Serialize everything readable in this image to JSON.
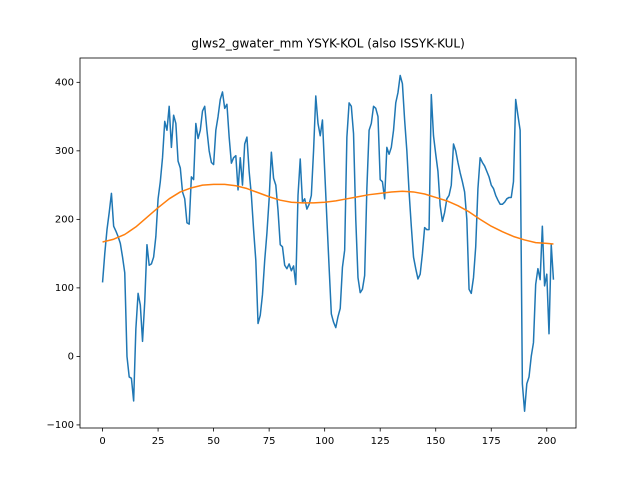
{
  "chart_data": {
    "type": "line",
    "title": "glws2_gwater_mm YSYK-KOL (also ISSYK-KUL)",
    "xlim": [
      -10.15,
      213.15
    ],
    "ylim": [
      -104.5,
      435.5
    ],
    "xticks": [
      0,
      25,
      50,
      75,
      100,
      125,
      150,
      175,
      200
    ],
    "yticks": [
      {
        "value": -100,
        "label": "−100"
      },
      0,
      100,
      200,
      300,
      400
    ],
    "series": [
      {
        "color": "#1f77b4",
        "x": [
          0,
          1,
          2,
          3,
          4,
          5,
          6,
          7,
          8,
          9,
          10,
          11,
          12,
          13,
          14,
          15,
          16,
          17,
          18,
          19,
          20,
          21,
          22,
          23,
          24,
          25,
          26,
          27,
          28,
          29,
          30,
          31,
          32,
          33,
          34,
          35,
          36,
          37,
          38,
          39,
          40,
          41,
          42,
          43,
          44,
          45,
          46,
          47,
          48,
          49,
          50,
          51,
          52,
          53,
          54,
          55,
          56,
          57,
          58,
          59,
          60,
          61,
          62,
          63,
          64,
          65,
          66,
          67,
          68,
          69,
          70,
          71,
          72,
          73,
          74,
          75,
          76,
          77,
          78,
          79,
          80,
          81,
          82,
          83,
          84,
          85,
          86,
          87,
          88,
          89,
          90,
          91,
          92,
          93,
          94,
          95,
          96,
          97,
          98,
          99,
          100,
          101,
          102,
          103,
          104,
          105,
          106,
          107,
          108,
          109,
          110,
          111,
          112,
          113,
          114,
          115,
          116,
          117,
          118,
          119,
          120,
          121,
          122,
          123,
          124,
          125,
          126,
          127,
          128,
          129,
          130,
          131,
          132,
          133,
          134,
          135,
          136,
          137,
          138,
          139,
          140,
          141,
          142,
          143,
          144,
          145,
          146,
          147,
          148,
          149,
          150,
          151,
          152,
          153,
          154,
          155,
          156,
          157,
          158,
          159,
          160,
          161,
          162,
          163,
          164,
          165,
          166,
          167,
          168,
          169,
          170,
          171,
          172,
          173,
          174,
          175,
          176,
          177,
          178,
          179,
          180,
          181,
          182,
          183,
          184,
          185,
          186,
          187,
          188,
          189,
          190,
          191,
          192,
          193,
          194,
          195,
          196,
          197,
          198,
          199,
          200,
          201,
          202,
          203
        ],
        "values": [
          108,
          150,
          185,
          210,
          238,
          190,
          183,
          175,
          165,
          145,
          122,
          0,
          -30,
          -32,
          -65,
          40,
          92,
          75,
          22,
          80,
          163,
          133,
          135,
          145,
          175,
          230,
          255,
          290,
          343,
          330,
          365,
          305,
          352,
          340,
          285,
          275,
          240,
          230,
          195,
          193,
          262,
          258,
          340,
          318,
          330,
          358,
          365,
          330,
          300,
          283,
          280,
          330,
          350,
          375,
          386,
          362,
          368,
          320,
          282,
          290,
          293,
          243,
          290,
          250,
          310,
          320,
          270,
          235,
          185,
          140,
          48,
          60,
          90,
          140,
          180,
          230,
          298,
          260,
          250,
          213,
          163,
          160,
          133,
          128,
          135,
          125,
          132,
          105,
          235,
          288,
          225,
          230,
          215,
          222,
          235,
          300,
          380,
          340,
          322,
          345,
          272,
          200,
          130,
          62,
          50,
          42,
          58,
          70,
          130,
          155,
          320,
          370,
          365,
          325,
          200,
          115,
          93,
          98,
          118,
          245,
          330,
          340,
          365,
          362,
          350,
          258,
          255,
          230,
          305,
          295,
          305,
          330,
          370,
          385,
          410,
          398,
          345,
          300,
          240,
          190,
          145,
          128,
          113,
          120,
          150,
          188,
          185,
          185,
          382,
          322,
          295,
          270,
          220,
          197,
          210,
          230,
          235,
          250,
          310,
          300,
          283,
          268,
          255,
          240,
          200,
          98,
          92,
          115,
          160,
          245,
          290,
          283,
          278,
          270,
          262,
          250,
          245,
          235,
          228,
          222,
          222,
          225,
          230,
          232,
          232,
          255,
          375,
          352,
          330,
          -40,
          -80,
          -40,
          -30,
          0,
          20,
          105,
          128,
          112,
          190,
          103,
          120,
          33,
          163,
          112
        ]
      },
      {
        "color": "#ff7f0e",
        "x": [
          0,
          5,
          10,
          15,
          20,
          25,
          30,
          35,
          40,
          45,
          50,
          55,
          60,
          65,
          70,
          75,
          80,
          85,
          90,
          95,
          100,
          105,
          110,
          115,
          120,
          125,
          130,
          135,
          140,
          145,
          150,
          155,
          160,
          165,
          170,
          175,
          180,
          185,
          190,
          195,
          200,
          203
        ],
        "values": [
          167,
          171,
          178,
          189,
          203,
          217,
          230,
          240,
          246,
          250,
          251,
          251,
          249,
          245,
          239,
          233,
          228,
          225,
          224,
          224,
          225,
          227,
          230,
          233,
          236,
          238,
          240,
          241,
          240,
          237,
          232,
          227,
          220,
          211,
          200,
          190,
          182,
          175,
          170,
          166,
          165,
          164
        ]
      }
    ]
  }
}
